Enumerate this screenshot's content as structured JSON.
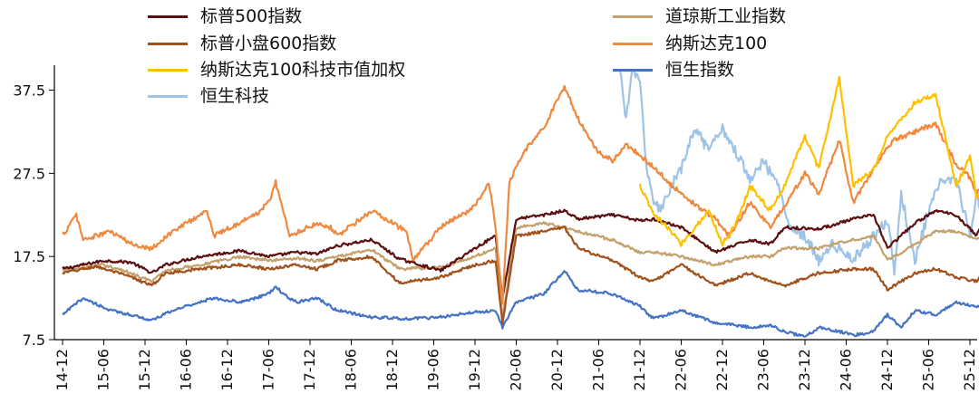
{
  "chart_data": {
    "type": "line",
    "title": "",
    "xlabel": "",
    "ylabel": "",
    "ylim": [
      7.5,
      40.5
    ],
    "yticks": [
      7.5,
      17.5,
      27.5,
      37.5
    ],
    "ytick_labels": [
      "7.5",
      "17.5",
      "27.5",
      "37.5"
    ],
    "xlim": [
      0,
      134
    ],
    "xtick_labels": [
      "14-12",
      "15-06",
      "15-12",
      "16-06",
      "16-12",
      "17-06",
      "17-12",
      "18-06",
      "18-12",
      "19-06",
      "19-12",
      "20-06",
      "20-12",
      "21-06",
      "21-12",
      "22-06",
      "22-12",
      "23-06",
      "23-12",
      "24-06",
      "24-12",
      "25-06",
      "25-12"
    ],
    "grid": false,
    "legend_position": "top",
    "series": [
      {
        "name": "标普500指数",
        "color": "#5c0f0f",
        "x": [
          0,
          6,
          10,
          13,
          15,
          20,
          26,
          30,
          34,
          37,
          40,
          45,
          49,
          55,
          60,
          63,
          64,
          66,
          70,
          73,
          75,
          80,
          84,
          86,
          90,
          95,
          100,
          103,
          105,
          110,
          115,
          118,
          120,
          124,
          127,
          130,
          133,
          134
        ],
        "values": [
          16,
          17,
          16.8,
          15.5,
          16.5,
          17.5,
          18.2,
          17.5,
          18,
          17.8,
          18.8,
          19.5,
          17.2,
          15.8,
          18.5,
          20,
          12.5,
          22,
          22.5,
          23,
          22,
          22.5,
          21.8,
          22,
          21,
          18,
          19.5,
          19,
          21,
          20.8,
          22,
          22.5,
          18.5,
          21.5,
          23,
          22.5,
          20,
          22
        ]
      },
      {
        "name": "标普小盘600指数",
        "color": "#a0521d",
        "x": [
          0,
          5,
          10,
          13,
          15,
          20,
          26,
          30,
          34,
          37,
          40,
          45,
          49,
          55,
          60,
          63,
          64,
          66,
          70,
          73,
          75,
          80,
          84,
          86,
          90,
          95,
          100,
          103,
          105,
          110,
          115,
          118,
          120,
          124,
          127,
          130,
          133,
          134
        ],
        "values": [
          15.5,
          16.3,
          15,
          14,
          15.5,
          16,
          16.5,
          16,
          16.5,
          16,
          17,
          17.5,
          14.3,
          15,
          16.5,
          17,
          9.5,
          20,
          20.5,
          21,
          18.5,
          17,
          15,
          14.5,
          16.5,
          14,
          15.5,
          14.5,
          14,
          15.5,
          16,
          16,
          13.5,
          15.5,
          16,
          15,
          14.5,
          16
        ]
      },
      {
        "name": "道琼斯工业指数",
        "color": "#c4a16c",
        "x": [
          0,
          6,
          10,
          13,
          15,
          20,
          26,
          30,
          34,
          37,
          40,
          45,
          49,
          55,
          60,
          63,
          64,
          66,
          70,
          73,
          75,
          80,
          84,
          86,
          90,
          95,
          100,
          103,
          105,
          110,
          115,
          118,
          120,
          124,
          127,
          130,
          133,
          134
        ],
        "values": [
          15.8,
          16.5,
          15.5,
          14.5,
          15.8,
          16.5,
          17.5,
          17,
          17.3,
          17,
          17.5,
          18.3,
          16,
          16.2,
          17.5,
          18.5,
          10,
          21,
          21.5,
          21,
          20.5,
          19.5,
          18,
          18,
          17.5,
          16.5,
          17.5,
          17.5,
          18.5,
          18.5,
          19.5,
          20,
          17,
          19,
          20.5,
          20.5,
          19.5,
          20.5
        ]
      },
      {
        "name": "纳斯达克100",
        "color": "#f0883e",
        "x": [
          0,
          2,
          3,
          7,
          10,
          13,
          16,
          19,
          21,
          22,
          28,
          30,
          31,
          33,
          37,
          39,
          40,
          45,
          47,
          50,
          51,
          55,
          60,
          62,
          63,
          64,
          65,
          67,
          70,
          73,
          75,
          78,
          80,
          82,
          85,
          90,
          95,
          97,
          100,
          103,
          105,
          108,
          110,
          113,
          115,
          118,
          120,
          121,
          124,
          127,
          130,
          132,
          133,
          134
        ],
        "values": [
          20,
          22.5,
          19.5,
          20.5,
          19,
          18.5,
          20.5,
          22,
          23,
          20,
          22.5,
          24,
          26.5,
          20,
          21.5,
          21,
          20,
          23,
          22,
          20.5,
          17,
          21,
          23.5,
          26.5,
          21,
          12,
          26.5,
          30,
          33,
          38,
          34,
          30,
          29,
          31,
          29,
          25,
          22,
          20,
          24,
          21,
          23.5,
          27.5,
          25,
          31.5,
          24,
          28,
          30.5,
          31.5,
          32.5,
          33.5,
          28.5,
          27,
          25,
          26
        ]
      },
      {
        "name": "纳斯达克100科技市值加权",
        "color": "#ffc000",
        "x": [
          84,
          86,
          88,
          90,
          92,
          94,
          96,
          98,
          100,
          103,
          105,
          108,
          110,
          113,
          115,
          118,
          120,
          121,
          124,
          127,
          130,
          132,
          133,
          134
        ],
        "values": [
          26,
          22.5,
          21,
          19,
          21,
          23,
          19,
          21.5,
          26,
          23,
          26,
          32,
          28,
          39,
          26,
          28,
          32,
          33,
          36,
          37,
          26,
          29.5,
          24.5,
          25
        ]
      },
      {
        "name": "恒生指数",
        "color": "#4472c4",
        "x": [
          0,
          3,
          7,
          10,
          13,
          16,
          19,
          22,
          26,
          30,
          31,
          32,
          34,
          37,
          40,
          45,
          50,
          55,
          60,
          63,
          64,
          66,
          70,
          73,
          75,
          80,
          84,
          86,
          88,
          90,
          95,
          100,
          103,
          105,
          108,
          110,
          113,
          115,
          118,
          120,
          122,
          124,
          127,
          130,
          133,
          134
        ],
        "values": [
          10.5,
          12.5,
          11,
          10.5,
          9.8,
          11,
          11.8,
          12.5,
          12,
          13,
          14,
          13,
          12,
          12.5,
          11,
          10.2,
          10,
          10.2,
          10.8,
          11,
          9,
          12,
          13,
          15.8,
          13.5,
          13,
          11.5,
          10,
          10.5,
          11,
          9.5,
          9,
          9.2,
          8.5,
          7.8,
          9,
          8.5,
          8,
          8.5,
          10.5,
          9,
          11,
          10.5,
          12,
          11.5,
          11.5
        ]
      },
      {
        "name": "恒生科技",
        "color": "#9dc3e6",
        "x": [
          81,
          82,
          83,
          84,
          85,
          86,
          87,
          88,
          90,
          92,
          94,
          96,
          98,
          100,
          102,
          104,
          106,
          108,
          110,
          112,
          115,
          118,
          120,
          121,
          122,
          124,
          127,
          130,
          132,
          133,
          134
        ],
        "values": [
          40.5,
          34,
          40.5,
          38,
          28,
          24,
          23,
          25,
          28,
          33,
          30,
          33,
          30,
          27,
          29,
          26,
          21,
          20,
          17,
          19,
          17,
          20,
          22,
          16,
          25,
          17,
          26,
          27,
          20,
          25,
          22
        ]
      }
    ]
  }
}
